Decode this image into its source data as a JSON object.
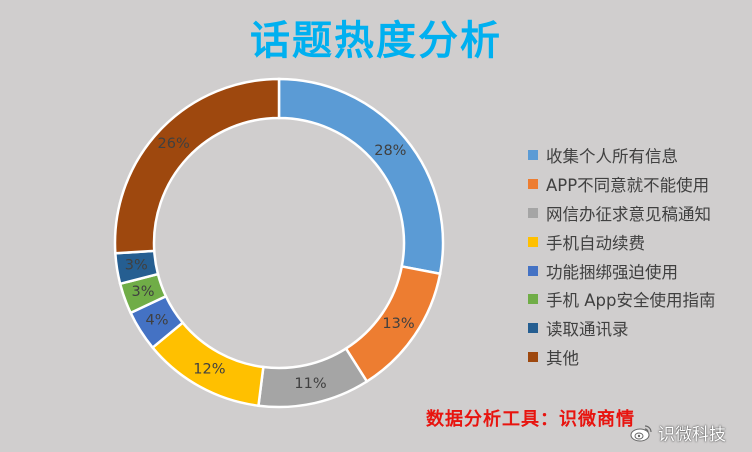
{
  "chart_data": {
    "type": "pie",
    "title": "话题热度分析",
    "donut": true,
    "categories": [
      "收集个人所有信息",
      "APP不同意就不能使用",
      "网信办征求意见稿通知",
      "手机自动续费",
      "功能捆绑强迫使用",
      "手机 App安全使用指南",
      "读取通讯录",
      "其他"
    ],
    "values": [
      28,
      13,
      11,
      12,
      4,
      3,
      3,
      26
    ],
    "labels": [
      "28%",
      "13%",
      "11%",
      "12%",
      "4%",
      "3%",
      "3%",
      "26%"
    ],
    "colors": [
      "#5b9bd5",
      "#ed7d31",
      "#a5a5a5",
      "#ffc000",
      "#4472c4",
      "#70ad47",
      "#255e91",
      "#9e480e"
    ],
    "legend_position": "right"
  },
  "title_color": "#00b0f0",
  "footer": {
    "note": "数据分析工具：识微商情"
  },
  "watermark": {
    "text": "识微科技",
    "icon": "weibo-logo"
  }
}
